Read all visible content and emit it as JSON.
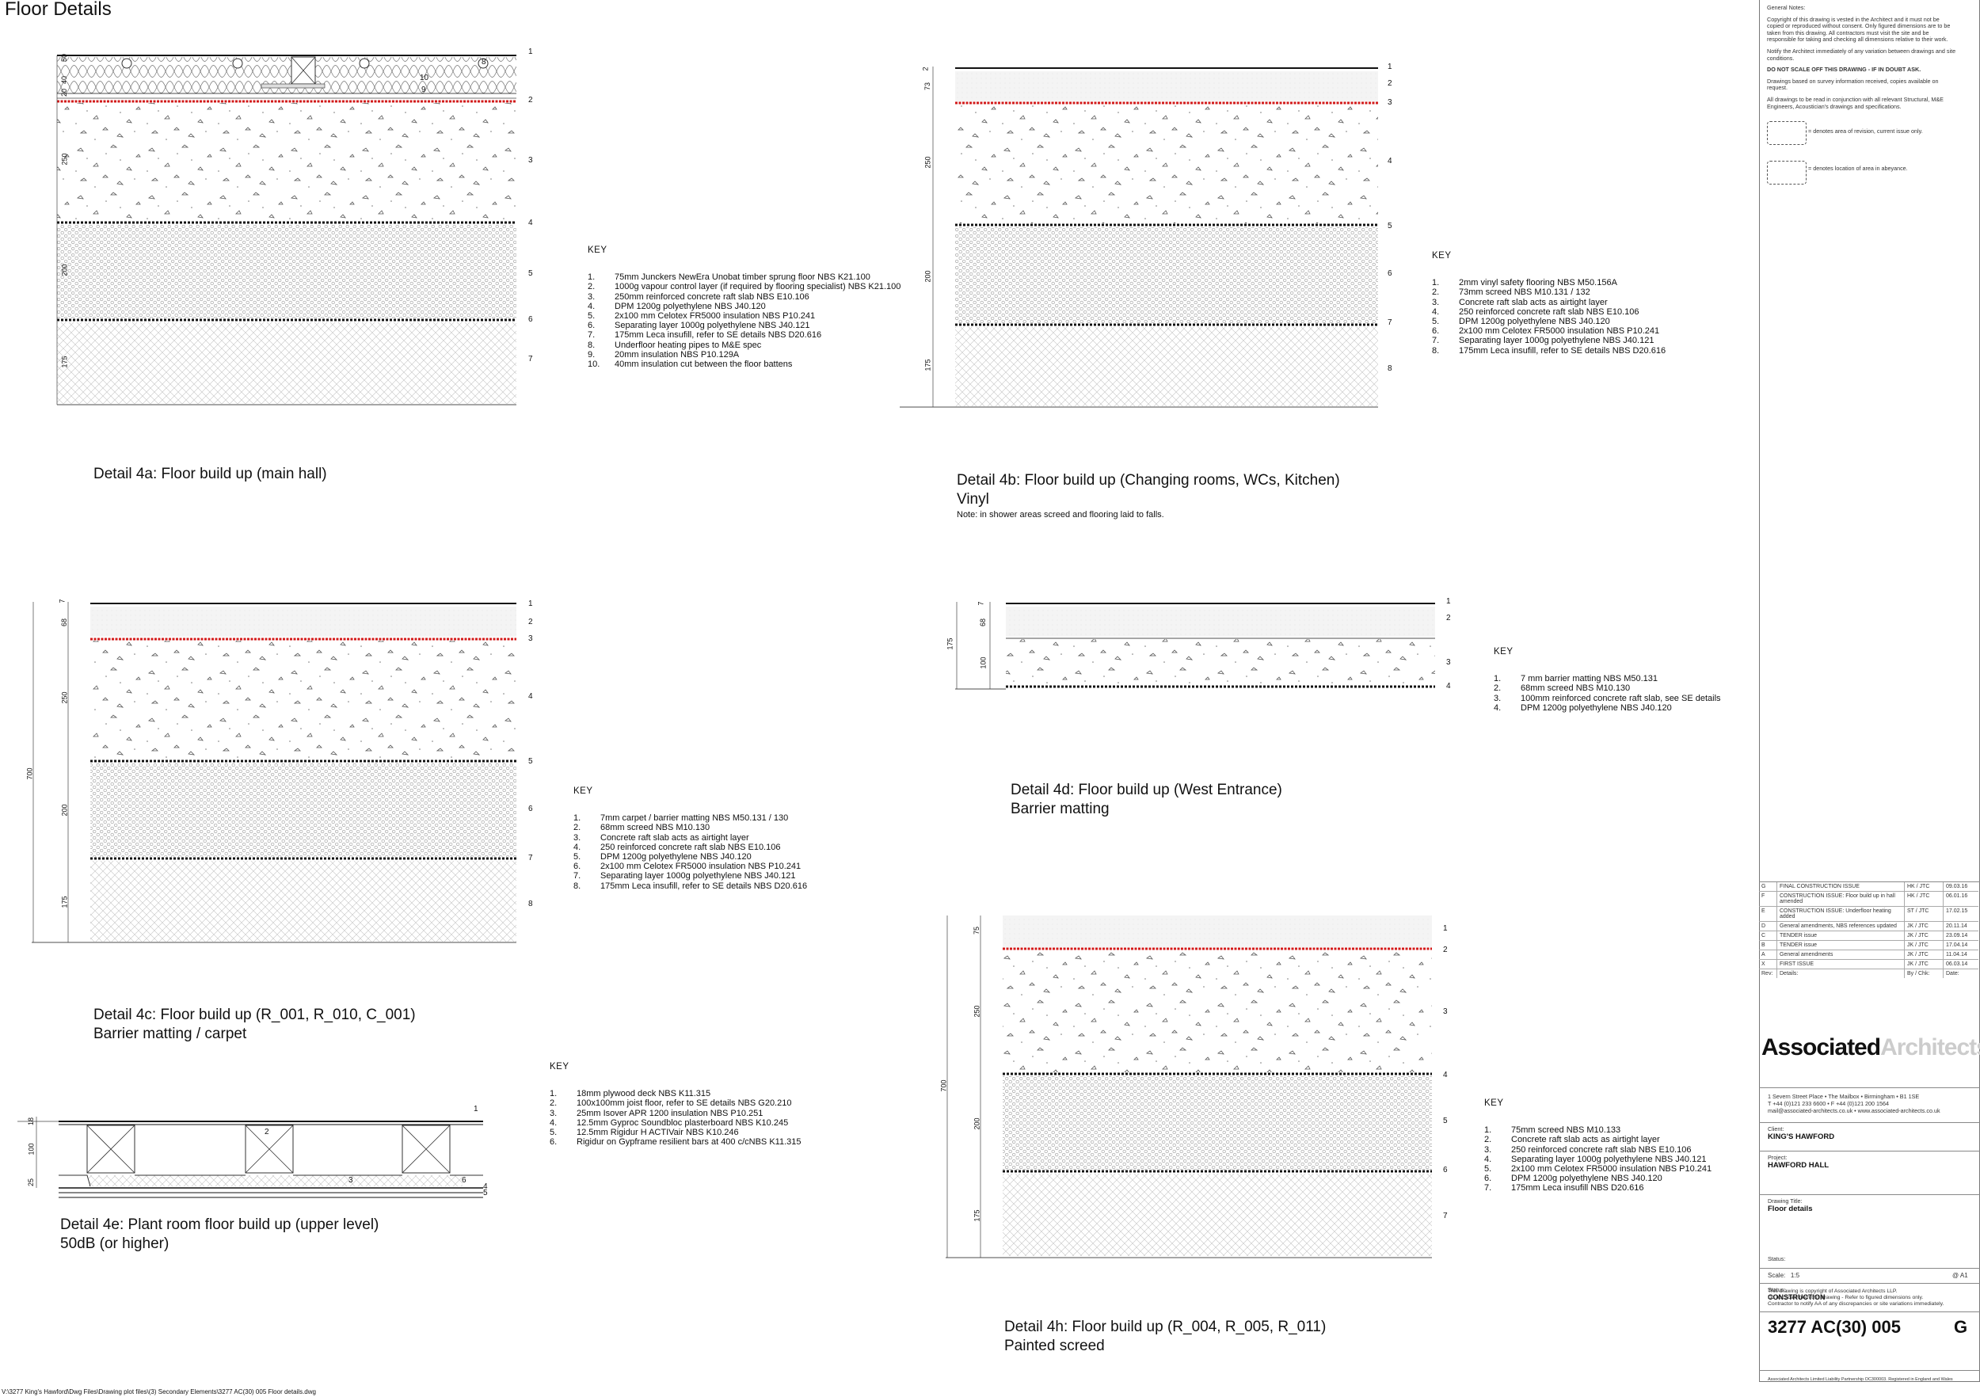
{
  "title": "Floor Details",
  "file_path": "V:\\3277 King's Hawford\\Dwg Files\\Drawing plot files\\(3) Secondary Elements\\3277 AC(30) 005 Floor details.dwg",
  "details": [
    {
      "id": "4a",
      "caption_line1": "Detail 4a: Floor build up (main hall)",
      "caption_line2": "",
      "dims": [
        "50",
        "40",
        "20",
        "250",
        "200",
        "175"
      ],
      "markers": [
        "1",
        "2",
        "3",
        "4",
        "5",
        "6",
        "7"
      ],
      "callouts": [
        "8",
        "9",
        "10"
      ],
      "key_title": "KEY",
      "key": [
        {
          "n": "1.",
          "t": "75mm Junckers NewEra Unobat timber sprung floor NBS K21.100"
        },
        {
          "n": "2.",
          "t": "1000g vapour control layer (if required by flooring specialist) NBS K21.100"
        },
        {
          "n": "3.",
          "t": "250mm reinforced concrete raft slab NBS E10.106"
        },
        {
          "n": "4.",
          "t": "DPM 1200g polyethylene NBS J40.120"
        },
        {
          "n": "5.",
          "t": "2x100 mm Celotex FR5000 insulation NBS P10.241"
        },
        {
          "n": "6.",
          "t": "Separating layer 1000g polyethylene NBS J40.121"
        },
        {
          "n": "7.",
          "t": "175mm Leca insufill, refer to SE details NBS D20.616"
        },
        {
          "n": "8.",
          "t": "Underfloor heating pipes to M&E spec"
        },
        {
          "n": "9.",
          "t": "20mm insulation NBS P10.129A"
        },
        {
          "n": "10.",
          "t": "40mm insulation cut between the floor battens"
        }
      ]
    },
    {
      "id": "4b",
      "caption_line1": "Detail 4b: Floor build up (Changing rooms, WCs, Kitchen)",
      "caption_line2": "Vinyl",
      "note": "Note: in shower areas screed and flooring laid to falls.",
      "dims": [
        "2",
        "73",
        "250",
        "200",
        "175"
      ],
      "markers": [
        "1",
        "2",
        "3",
        "4",
        "5",
        "6",
        "7",
        "8"
      ],
      "key_title": "KEY",
      "key": [
        {
          "n": "1.",
          "t": "2mm vinyl safety flooring NBS M50.156A"
        },
        {
          "n": "2.",
          "t": "73mm screed NBS M10.131 / 132"
        },
        {
          "n": "3.",
          "t": "Concrete raft slab acts as airtight layer"
        },
        {
          "n": "4.",
          "t": "250 reinforced concrete raft slab NBS E10.106"
        },
        {
          "n": "5.",
          "t": "DPM 1200g polyethylene NBS J40.120"
        },
        {
          "n": "6.",
          "t": "2x100 mm Celotex FR5000 insulation NBS P10.241"
        },
        {
          "n": "7.",
          "t": "Separating layer 1000g polyethylene NBS J40.121"
        },
        {
          "n": "8.",
          "t": "175mm Leca insufill, refer to SE details NBS D20.616"
        }
      ]
    },
    {
      "id": "4c",
      "caption_line1": "Detail 4c: Floor build up (R_001, R_010, C_001)",
      "caption_line2": "Barrier matting / carpet",
      "dims": [
        "7",
        "68",
        "250",
        "200",
        "175"
      ],
      "overall_dim": "700",
      "markers": [
        "1",
        "2",
        "3",
        "4",
        "5",
        "6",
        "7",
        "8"
      ],
      "key_title": "KEY",
      "key": [
        {
          "n": "1.",
          "t": "7mm carpet / barrier matting NBS M50.131 / 130"
        },
        {
          "n": "2.",
          "t": "68mm screed NBS M10.130"
        },
        {
          "n": "3.",
          "t": "Concrete raft slab acts as airtight layer"
        },
        {
          "n": "4.",
          "t": "250 reinforced concrete raft slab NBS E10.106"
        },
        {
          "n": "5.",
          "t": "DPM 1200g polyethylene NBS J40.120"
        },
        {
          "n": "6.",
          "t": "2x100 mm Celotex FR5000 insulation NBS P10.241"
        },
        {
          "n": "7.",
          "t": "Separating layer 1000g polyethylene NBS J40.121"
        },
        {
          "n": "8.",
          "t": "175mm Leca insufill, refer to SE details NBS D20.616"
        }
      ]
    },
    {
      "id": "4d",
      "caption_line1": "Detail 4d: Floor build up (West Entrance)",
      "caption_line2": "Barrier matting",
      "dims": [
        "7",
        "68",
        "100"
      ],
      "overall_dim": "175",
      "markers": [
        "1",
        "2",
        "3",
        "4"
      ],
      "key_title": "KEY",
      "key": [
        {
          "n": "1.",
          "t": "7 mm barrier matting NBS M50.131"
        },
        {
          "n": "2.",
          "t": "68mm screed NBS M10.130"
        },
        {
          "n": "3.",
          "t": "100mm reinforced concrete raft slab, see SE details"
        },
        {
          "n": "4.",
          "t": "DPM 1200g polyethylene NBS J40.120"
        }
      ]
    },
    {
      "id": "4e",
      "caption_line1": "Detail 4e: Plant room floor build up (upper level)",
      "caption_line2": "50dB (or higher)",
      "dims": [
        "18",
        "100",
        "25"
      ],
      "markers": [
        "1",
        "2",
        "3",
        "4",
        "5",
        "6"
      ],
      "key_title": "KEY",
      "key": [
        {
          "n": "1.",
          "t": "18mm plywood deck  NBS K11.315"
        },
        {
          "n": "2.",
          "t": "100x100mm joist floor, refer to SE details  NBS G20.210"
        },
        {
          "n": "3.",
          "t": "25mm Isover APR 1200 insulation NBS P10.251"
        },
        {
          "n": "4.",
          "t": "12.5mm Gyproc Soundbloc plasterboard NBS K10.245"
        },
        {
          "n": "5.",
          "t": "12.5mm Rigidur H ACTIVair NBS K10.246"
        },
        {
          "n": "6.",
          "t": "Rigidur on Gypframe resilient bars at 400 c/cNBS K11.315"
        }
      ]
    },
    {
      "id": "4h",
      "caption_line1": "Detail 4h: Floor build up (R_004, R_005, R_011)",
      "caption_line2": "Painted screed",
      "dims": [
        "75",
        "250",
        "200",
        "175"
      ],
      "overall_dim": "700",
      "markers": [
        "1",
        "2",
        "3",
        "4",
        "5",
        "6",
        "7"
      ],
      "key_title": "KEY",
      "key": [
        {
          "n": "1.",
          "t": "75mm screed NBS M10.133"
        },
        {
          "n": "2.",
          "t": "Concrete raft slab acts as airtight layer"
        },
        {
          "n": "3.",
          "t": "250 reinforced concrete raft slab NBS E10.106"
        },
        {
          "n": "4.",
          "t": "Separating layer 1000g polyethylene NBS J40.121"
        },
        {
          "n": "5.",
          "t": "2x100 mm Celotex FR5000 insulation NBS P10.241"
        },
        {
          "n": "6.",
          "t": "DPM 1200g polyethylene NBS J40.120"
        },
        {
          "n": "7.",
          "t": "175mm Leca insufill NBS D20.616"
        }
      ]
    }
  ],
  "title_block": {
    "general_notes_title": "General Notes:",
    "notes": [
      "Copyright of this drawing is vested in the Architect and it must not be copied or reproduced without consent. Only figured dimensions are to be taken from this drawing.  All contractors must visit the site and be responsible for taking and checking all dimensions relative to their work.",
      "Notify the Architect immediately of any variation between drawings and site conditions.",
      "DO NOT SCALE OFF THIS DRAWING - IF IN DOUBT ASK.",
      "Drawings based on survey information received, copies available on request.",
      "All drawings to be read in conjunction with all relevant Structural, M&E Engineers, Acoustician's drawings and specifications."
    ],
    "revision_area_label": "= denotes area of revision, current issue only.",
    "abeyance_label": "= denotes location of area in abeyance.",
    "revisions": [
      {
        "rev": "G",
        "details": "FINAL CONSTRUCTION ISSUE",
        "by": "HK / JTC",
        "date": "09.03.16"
      },
      {
        "rev": "F",
        "details": "CONSTRUCTION ISSUE: Floor build up in hall amended",
        "by": "HK / JTC",
        "date": "06.01.16"
      },
      {
        "rev": "E",
        "details": "CONSTRUCTION ISSUE: Underfloor heating added",
        "by": "ST / JTC",
        "date": "17.02.15"
      },
      {
        "rev": "D",
        "details": "General amendments, NBS references updated",
        "by": "JK / JTC",
        "date": "20.11.14"
      },
      {
        "rev": "C",
        "details": "TENDER issue",
        "by": "JK / JTC",
        "date": "23.09.14"
      },
      {
        "rev": "B",
        "details": "TENDER issue",
        "by": "JK / JTC",
        "date": "17.04.14"
      },
      {
        "rev": "A",
        "details": "General amendments",
        "by": "JK / JTC",
        "date": "11.04.14"
      },
      {
        "rev": "X",
        "details": "FIRST ISSUE",
        "by": "JK / JTC",
        "date": "06.03.14"
      }
    ],
    "rev_header": {
      "rev": "Rev:",
      "details": "Details:",
      "by": "By / Chk:",
      "date": "Date:"
    },
    "logo_part1": "Associated",
    "logo_part2": "Architects",
    "address_line1": "1 Severn Street Place • The Mailbox • Birmingham • B1 1SE",
    "address_line2": "T +44 (0)121 233 6600 • F +44 (0)121 200 1564",
    "address_line3": "mail@associated-architects.co.uk • www.associated-architects.co.uk",
    "client_label": "Client:",
    "client": "KING'S HAWFORD",
    "project_label": "Project:",
    "project": "HAWFORD HALL",
    "drawing_title_label": "Drawing Title:",
    "drawing_title": "Floor details",
    "scale_label": "Scale:",
    "scale": "1:5",
    "paper": "@ A1",
    "status_label": "Status:",
    "status": "CONSTRUCTION",
    "copyright1": "This drawing is copyright of Associated Architects LLP.",
    "copyright2": "Do not scale from this drawing - Refer to figured dimensions only.",
    "copyright3": "Contractor to notify AA of any discrepancies or site variations immediately.",
    "drawing_number": "3277 AC(30) 005",
    "revision": "G",
    "footer": "Associated Architects Limited Liability Partnership OC300003. Registered in England and Wales"
  }
}
